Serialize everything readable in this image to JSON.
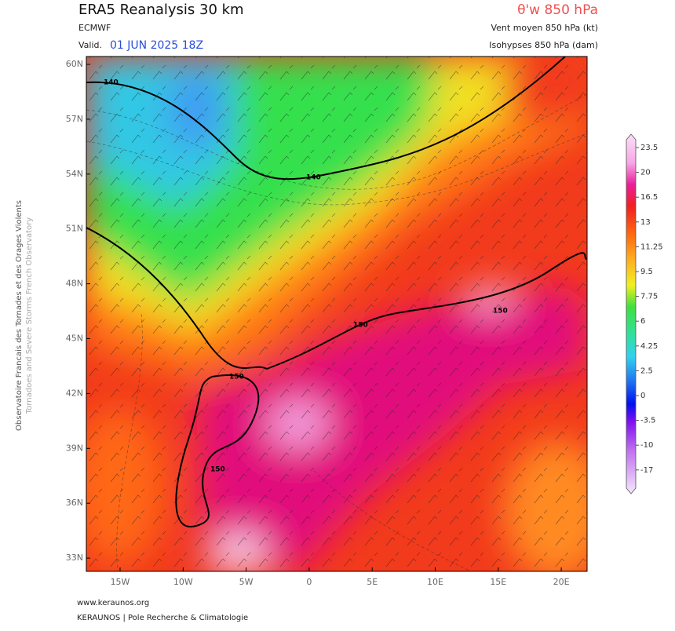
{
  "header": {
    "title": "ERA5 Reanalysis 30 km",
    "model": "ECMWF",
    "valid_prefix": "Valid.",
    "valid_date": "01 JUN 2025 18Z",
    "parameter": "θ'w 850 hPa",
    "wind": "Vent moyen 850 hPa (kt)",
    "heights": "Isohypses 850 hPa (dam)"
  },
  "side_text": [
    "Observatoire Francais des Tornades et des Orages Violents",
    "Tornadoes and Severe Storms French Observatory"
  ],
  "map": {
    "lat_labels": [
      "60N",
      "57N",
      "54N",
      "51N",
      "48N",
      "45N",
      "42N",
      "39N",
      "36N",
      "33N"
    ],
    "lon_labels": [
      "15W",
      "10W",
      "5W",
      "0",
      "5E",
      "10E",
      "15E",
      "20E"
    ],
    "contour_labels": [
      "140",
      "140",
      "150",
      "150",
      "150",
      "150"
    ]
  },
  "colorbar": {
    "labels": [
      "23.5",
      "20",
      "16.5",
      "13",
      "11.25",
      "9.5",
      "7.75",
      "6",
      "4.25",
      "2.5",
      "0",
      "-3.5",
      "-10",
      "-17"
    ]
  },
  "footer": {
    "url": "www.keraunos.org",
    "credit": "KERAUNOS | Pole Recherche & Climatologie"
  }
}
